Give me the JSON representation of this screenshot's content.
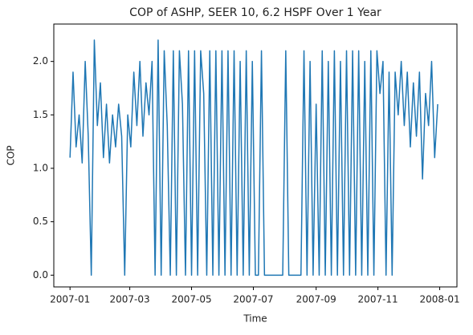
{
  "chart_data": {
    "type": "line",
    "title": "COP of ASHP, SEER 10, 6.2 HSPF Over 1 Year",
    "x_label": "Time",
    "y_label": "COP",
    "xlim": [
      -16,
      382
    ],
    "ylim": [
      -0.11,
      2.35
    ],
    "xticks": [
      {
        "value": 0,
        "label": "2007-01"
      },
      {
        "value": 59,
        "label": "2007-03"
      },
      {
        "value": 120,
        "label": "2007-05"
      },
      {
        "value": 181,
        "label": "2007-07"
      },
      {
        "value": 243,
        "label": "2007-09"
      },
      {
        "value": 304,
        "label": "2007-11"
      },
      {
        "value": 365,
        "label": "2008-01"
      }
    ],
    "yticks": [
      {
        "value": 0,
        "label": "0.0"
      },
      {
        "value": 0.5,
        "label": "0.5"
      },
      {
        "value": 1,
        "label": "1.0"
      },
      {
        "value": 1.5,
        "label": "1.5"
      },
      {
        "value": 2,
        "label": "2.0"
      }
    ],
    "grid": false,
    "color": "#1f77b4",
    "x": [
      0,
      3,
      6,
      9,
      12,
      15,
      18,
      21,
      24,
      27,
      30,
      33,
      36,
      39,
      42,
      45,
      48,
      51,
      54,
      57,
      60,
      63,
      66,
      69,
      72,
      75,
      78,
      81,
      84,
      87,
      90,
      93,
      96,
      99,
      102,
      105,
      108,
      111,
      114,
      117,
      120,
      123,
      126,
      129,
      132,
      135,
      138,
      141,
      144,
      147,
      150,
      153,
      156,
      159,
      162,
      165,
      168,
      171,
      174,
      177,
      180,
      183,
      186,
      189,
      192,
      195,
      198,
      201,
      204,
      207,
      210,
      213,
      216,
      219,
      222,
      225,
      228,
      231,
      234,
      237,
      240,
      243,
      246,
      249,
      252,
      255,
      258,
      261,
      264,
      267,
      270,
      273,
      276,
      279,
      282,
      285,
      288,
      291,
      294,
      297,
      300,
      303,
      306,
      309,
      312,
      315,
      318,
      321,
      324,
      327,
      330,
      333,
      336,
      339,
      342,
      345,
      348,
      351,
      354,
      357,
      360,
      363
    ],
    "values": [
      1.1,
      1.9,
      1.2,
      1.5,
      1.05,
      2.0,
      1.3,
      0.0,
      2.2,
      1.4,
      1.8,
      1.1,
      1.6,
      1.05,
      1.5,
      1.2,
      1.6,
      1.3,
      0.0,
      1.5,
      1.2,
      1.9,
      1.4,
      2.0,
      1.3,
      1.8,
      1.5,
      2.0,
      0.0,
      2.2,
      0.0,
      2.1,
      1.4,
      0.0,
      2.1,
      0.0,
      2.1,
      1.6,
      0.0,
      2.1,
      0.0,
      2.1,
      0.0,
      2.1,
      1.7,
      0.0,
      2.1,
      0.0,
      2.1,
      0.0,
      2.1,
      0.0,
      2.1,
      0.0,
      2.1,
      0.0,
      2.0,
      0.0,
      2.1,
      0.0,
      2.0,
      0.0,
      0.0,
      2.1,
      0.0,
      0.0,
      0.0,
      0.0,
      0.0,
      0.0,
      0.0,
      2.1,
      0.0,
      0.0,
      0.0,
      0.0,
      0.0,
      2.1,
      0.0,
      2.0,
      0.0,
      1.6,
      0.0,
      2.1,
      0.0,
      2.0,
      0.0,
      2.1,
      0.0,
      2.0,
      0.0,
      2.1,
      0.0,
      2.1,
      0.0,
      2.1,
      0.0,
      2.0,
      0.0,
      2.1,
      0.0,
      2.1,
      1.7,
      2.0,
      0.0,
      1.9,
      0.0,
      1.9,
      1.5,
      2.0,
      1.4,
      1.9,
      1.2,
      1.8,
      1.3,
      1.9,
      0.9,
      1.7,
      1.4,
      2.0,
      1.1,
      1.6
    ]
  }
}
